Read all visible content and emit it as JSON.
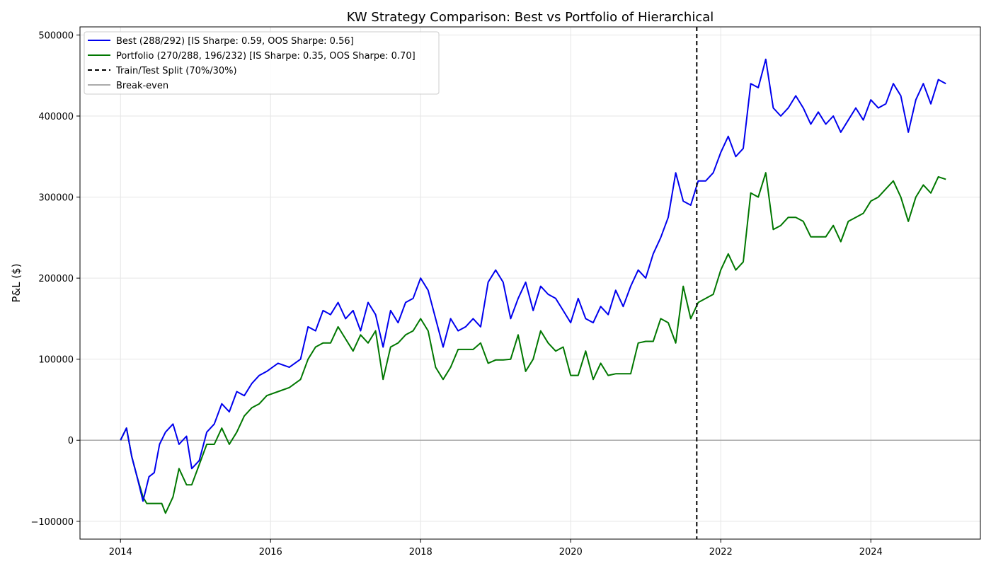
{
  "chart_data": {
    "type": "line",
    "title": "KW Strategy Comparison: Best vs Portfolio of Hierarchical",
    "xlabel": "",
    "ylabel": "P&L ($)",
    "xlim": [
      2013.46,
      2025.46
    ],
    "ylim": [
      -122000,
      510000
    ],
    "x_ticks": [
      2014,
      2016,
      2018,
      2020,
      2022,
      2024
    ],
    "x_tick_labels": [
      "2014",
      "2016",
      "2018",
      "2020",
      "2022",
      "2024"
    ],
    "y_ticks": [
      -100000,
      0,
      100000,
      200000,
      300000,
      400000,
      500000
    ],
    "y_tick_labels": [
      "−100000",
      "0",
      "100000",
      "200000",
      "300000",
      "400000",
      "500000"
    ],
    "grid": true,
    "legend_position": "upper-left",
    "series": [
      {
        "name": "Best (288/292) [IS Sharpe: 0.59, OOS Sharpe: 0.56]",
        "color": "#0000ee",
        "x": [
          2014.0,
          2014.08,
          2014.15,
          2014.22,
          2014.3,
          2014.38,
          2014.45,
          2014.52,
          2014.6,
          2014.7,
          2014.78,
          2014.88,
          2014.95,
          2015.05,
          2015.15,
          2015.25,
          2015.35,
          2015.45,
          2015.55,
          2015.65,
          2015.75,
          2015.85,
          2015.95,
          2016.1,
          2016.25,
          2016.4,
          2016.5,
          2016.6,
          2016.7,
          2016.8,
          2016.9,
          2017.0,
          2017.1,
          2017.2,
          2017.3,
          2017.4,
          2017.5,
          2017.6,
          2017.7,
          2017.8,
          2017.9,
          2018.0,
          2018.1,
          2018.2,
          2018.3,
          2018.4,
          2018.5,
          2018.6,
          2018.7,
          2018.8,
          2018.9,
          2019.0,
          2019.1,
          2019.2,
          2019.3,
          2019.4,
          2019.5,
          2019.6,
          2019.7,
          2019.8,
          2019.9,
          2020.0,
          2020.1,
          2020.2,
          2020.3,
          2020.4,
          2020.5,
          2020.6,
          2020.7,
          2020.8,
          2020.9,
          2021.0,
          2021.1,
          2021.2,
          2021.3,
          2021.4,
          2021.5,
          2021.6,
          2021.7,
          2021.8,
          2021.9,
          2022.0,
          2022.1,
          2022.2,
          2022.3,
          2022.4,
          2022.5,
          2022.6,
          2022.7,
          2022.8,
          2022.9,
          2023.0,
          2023.1,
          2023.2,
          2023.3,
          2023.4,
          2023.5,
          2023.6,
          2023.7,
          2023.8,
          2023.9,
          2024.0,
          2024.1,
          2024.2,
          2024.3,
          2024.4,
          2024.5,
          2024.6,
          2024.7,
          2024.8,
          2024.9,
          2025.0
        ],
        "values": [
          0,
          15000,
          -20000,
          -45000,
          -75000,
          -45000,
          -40000,
          -5000,
          10000,
          20000,
          -5000,
          5000,
          -35000,
          -25000,
          10000,
          20000,
          45000,
          35000,
          60000,
          55000,
          70000,
          80000,
          85000,
          95000,
          90000,
          100000,
          140000,
          135000,
          160000,
          155000,
          170000,
          150000,
          160000,
          135000,
          170000,
          155000,
          115000,
          160000,
          145000,
          170000,
          175000,
          200000,
          185000,
          150000,
          115000,
          150000,
          135000,
          140000,
          150000,
          140000,
          195000,
          210000,
          195000,
          150000,
          175000,
          195000,
          160000,
          190000,
          180000,
          175000,
          160000,
          145000,
          175000,
          150000,
          145000,
          165000,
          155000,
          185000,
          165000,
          190000,
          210000,
          200000,
          230000,
          250000,
          275000,
          330000,
          295000,
          290000,
          320000,
          320000,
          330000,
          355000,
          375000,
          350000,
          360000,
          440000,
          435000,
          470000,
          410000,
          400000,
          410000,
          425000,
          410000,
          390000,
          405000,
          390000,
          400000,
          380000,
          395000,
          410000,
          395000,
          420000,
          410000,
          415000,
          440000,
          425000,
          380000,
          420000,
          440000,
          415000,
          445000,
          440000
        ]
      },
      {
        "name": "Portfolio (270/288, 196/232) [IS Sharpe: 0.35, OOS Sharpe: 0.70]",
        "color": "#007700",
        "x": [
          2014.0,
          2014.08,
          2014.15,
          2014.22,
          2014.3,
          2014.35,
          2014.45,
          2014.55,
          2014.6,
          2014.7,
          2014.78,
          2014.88,
          2014.95,
          2015.05,
          2015.15,
          2015.25,
          2015.35,
          2015.45,
          2015.55,
          2015.65,
          2015.75,
          2015.85,
          2015.95,
          2016.1,
          2016.25,
          2016.4,
          2016.5,
          2016.6,
          2016.7,
          2016.8,
          2016.9,
          2017.0,
          2017.1,
          2017.2,
          2017.3,
          2017.4,
          2017.5,
          2017.6,
          2017.7,
          2017.8,
          2017.9,
          2018.0,
          2018.1,
          2018.2,
          2018.3,
          2018.4,
          2018.5,
          2018.6,
          2018.7,
          2018.8,
          2018.9,
          2019.0,
          2019.1,
          2019.2,
          2019.3,
          2019.4,
          2019.5,
          2019.6,
          2019.7,
          2019.8,
          2019.9,
          2020.0,
          2020.1,
          2020.2,
          2020.3,
          2020.4,
          2020.5,
          2020.6,
          2020.7,
          2020.8,
          2020.9,
          2021.0,
          2021.1,
          2021.2,
          2021.3,
          2021.4,
          2021.5,
          2021.6,
          2021.7,
          2021.8,
          2021.9,
          2022.0,
          2022.1,
          2022.2,
          2022.3,
          2022.4,
          2022.5,
          2022.6,
          2022.7,
          2022.8,
          2022.9,
          2023.0,
          2023.1,
          2023.2,
          2023.3,
          2023.4,
          2023.5,
          2023.6,
          2023.7,
          2023.8,
          2023.9,
          2024.0,
          2024.1,
          2024.2,
          2024.3,
          2024.4,
          2024.5,
          2024.6,
          2024.7,
          2024.8,
          2024.9,
          2025.0
        ],
        "values": [
          0,
          15000,
          -20000,
          -45000,
          -70000,
          -78000,
          -78000,
          -78000,
          -90000,
          -70000,
          -35000,
          -55000,
          -55000,
          -30000,
          -5000,
          -5000,
          15000,
          -5000,
          10000,
          30000,
          40000,
          45000,
          55000,
          60000,
          65000,
          75000,
          100000,
          115000,
          120000,
          120000,
          140000,
          125000,
          110000,
          130000,
          120000,
          135000,
          75000,
          115000,
          120000,
          130000,
          135000,
          150000,
          135000,
          90000,
          75000,
          90000,
          112000,
          112000,
          112000,
          120000,
          95000,
          99000,
          99000,
          100000,
          130000,
          85000,
          100000,
          135000,
          120000,
          110000,
          115000,
          80000,
          80000,
          110000,
          75000,
          95000,
          80000,
          82000,
          82000,
          82000,
          120000,
          122000,
          122000,
          150000,
          145000,
          120000,
          190000,
          150000,
          170000,
          175000,
          180000,
          210000,
          230000,
          210000,
          220000,
          305000,
          300000,
          330000,
          260000,
          265000,
          275000,
          275000,
          270000,
          251000,
          251000,
          251000,
          265000,
          245000,
          270000,
          275000,
          280000,
          295000,
          300000,
          310000,
          320000,
          300000,
          270000,
          300000,
          315000,
          305000,
          325000,
          322000
        ]
      },
      {
        "name": "Train/Test Split (70%/30%)",
        "color": "#000000",
        "style": "dashed",
        "x_value": 2021.68
      },
      {
        "name": "Break-even",
        "color": "#aaaaaa",
        "y_value": 0
      }
    ]
  }
}
